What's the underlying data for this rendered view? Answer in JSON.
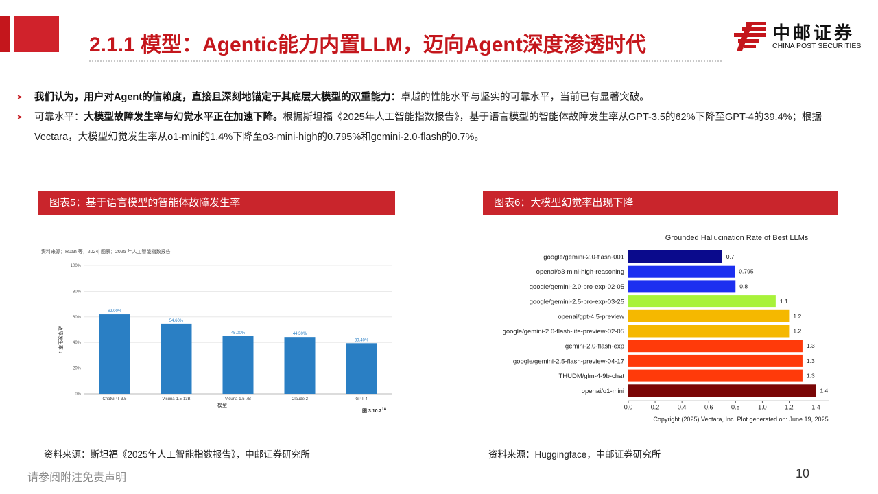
{
  "header": {
    "title": "2.1.1 模型：Agentic能力内置LLM，迈向Agent深度渗透时代",
    "logo_cn": "中邮证券",
    "logo_en": "CHINA POST SECURITIES",
    "brand_color": "#c4161c"
  },
  "bullets": [
    {
      "bold": "我们认为，用户对Agent的信赖度，直接且深刻地锚定于其底层大模型的双重能力：",
      "rest": "卓越的性能水平与坚实的可靠水平，当前已有显著突破。"
    },
    {
      "prefix": "可靠水平：",
      "bold": "大模型故障发生率与幻觉水平正在加速下降。",
      "rest": "根据斯坦福《2025年人工智能指数报告》，基于语言模型的智能体故障发生率从GPT-3.5的62%下降至GPT-4的39.4%；根据Vectara，大模型幻觉发生率从o1-mini的1.4%下降至o3-mini-high的0.795%和gemini-2.0-flash的0.7%。"
    }
  ],
  "figure5": {
    "heading": "图表5：基于语言模型的智能体故障发生率",
    "source": "资料来源：斯坦福《2025年人工智能指数报告》，中邮证券研究所",
    "inner_caption": "资料来源：Ruan 等，2024| 图表：2025 年人工智能指数报告",
    "figure_tag": "图 3.10.2",
    "figure_tag_sup": "18"
  },
  "figure6": {
    "heading": "图表6：大模型幻觉率出现下降",
    "source": "资料来源：Huggingface，中邮证券研究所",
    "copyright": "Copyright (2025) Vectara, Inc. Plot generated on: June 19, 2025"
  },
  "chart_data": [
    {
      "type": "bar",
      "title": "",
      "xlabel": "模型",
      "ylabel": "故障发生率 ↓",
      "categories": [
        "ChatGPT-3.5",
        "Vicuna-1.5-13B",
        "Vicuna-1.5-7B",
        "Claude 2",
        "GPT-4"
      ],
      "values": [
        62.0,
        54.6,
        45.0,
        44.3,
        39.4
      ],
      "value_labels": [
        "62.00%",
        "54.60%",
        "45.00%",
        "44.30%",
        "39.40%"
      ],
      "yticks": [
        "0%",
        "20%",
        "40%",
        "60%",
        "80%",
        "100%"
      ],
      "ylim": [
        0,
        100
      ],
      "bar_color": "#2a7fc4",
      "grid": true
    },
    {
      "type": "bar",
      "orientation": "horizontal",
      "title": "Grounded Hallucination Rate of Best LLMs",
      "categories": [
        "google/gemini-2.0-flash-001",
        "openai/o3-mini-high-reasoning",
        "google/gemini-2.0-pro-exp-02-05",
        "google/gemini-2.5-pro-exp-03-25",
        "openai/gpt-4.5-preview",
        "google/gemini-2.0-flash-lite-preview-02-05",
        "gemini-2.0-flash-exp",
        "google/gemini-2.5-flash-preview-04-17",
        "THUDM/glm-4-9b-chat",
        "openai/o1-mini"
      ],
      "values": [
        0.7,
        0.795,
        0.8,
        1.1,
        1.2,
        1.2,
        1.3,
        1.3,
        1.3,
        1.4
      ],
      "value_labels": [
        "0.7",
        "0.795",
        "0.8",
        "1.1",
        "1.2",
        "1.2",
        "1.3",
        "1.3",
        "1.3",
        "1.4"
      ],
      "colors": [
        "#0a0a8c",
        "#1c2ff0",
        "#1c2ff0",
        "#a8f23a",
        "#f5b800",
        "#f5b800",
        "#ff3a0a",
        "#ff3a0a",
        "#ff3a0a",
        "#7a0606"
      ],
      "xticks": [
        "0.0",
        "0.2",
        "0.4",
        "0.6",
        "0.8",
        "1.0",
        "1.2",
        "1.4"
      ],
      "xlim": [
        0,
        1.5
      ],
      "grid": false
    }
  ],
  "footer": {
    "disclaimer": "请参阅附注免责声明",
    "page": "10"
  }
}
